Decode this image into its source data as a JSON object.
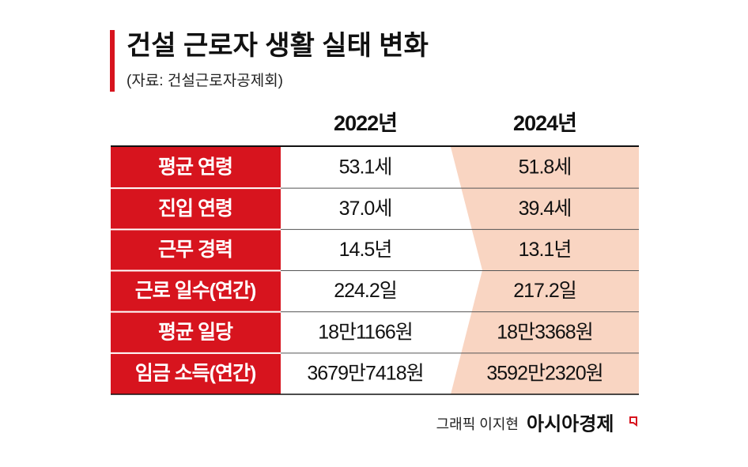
{
  "header": {
    "title": "건설 근로자 생활 실태 변화",
    "source": "(자료: 건설근로자공제회)"
  },
  "table": {
    "columns": [
      "2022년",
      "2024년"
    ],
    "rows": [
      [
        "평균 연령",
        "53.1세",
        "51.8세"
      ],
      [
        "진입 연령",
        "37.0세",
        "39.4세"
      ],
      [
        "근무 경력",
        "14.5년",
        "13.1년"
      ],
      [
        "근로 일수(연간)",
        "224.2일",
        "217.2일"
      ],
      [
        "평균 일당",
        "18만1166원",
        "18만3368원"
      ],
      [
        "임금 소득(연간)",
        "3679만7418원",
        "3592만2320원"
      ]
    ]
  },
  "footer": {
    "credit": "그래픽 이지현",
    "brand": "아시아경제"
  }
}
